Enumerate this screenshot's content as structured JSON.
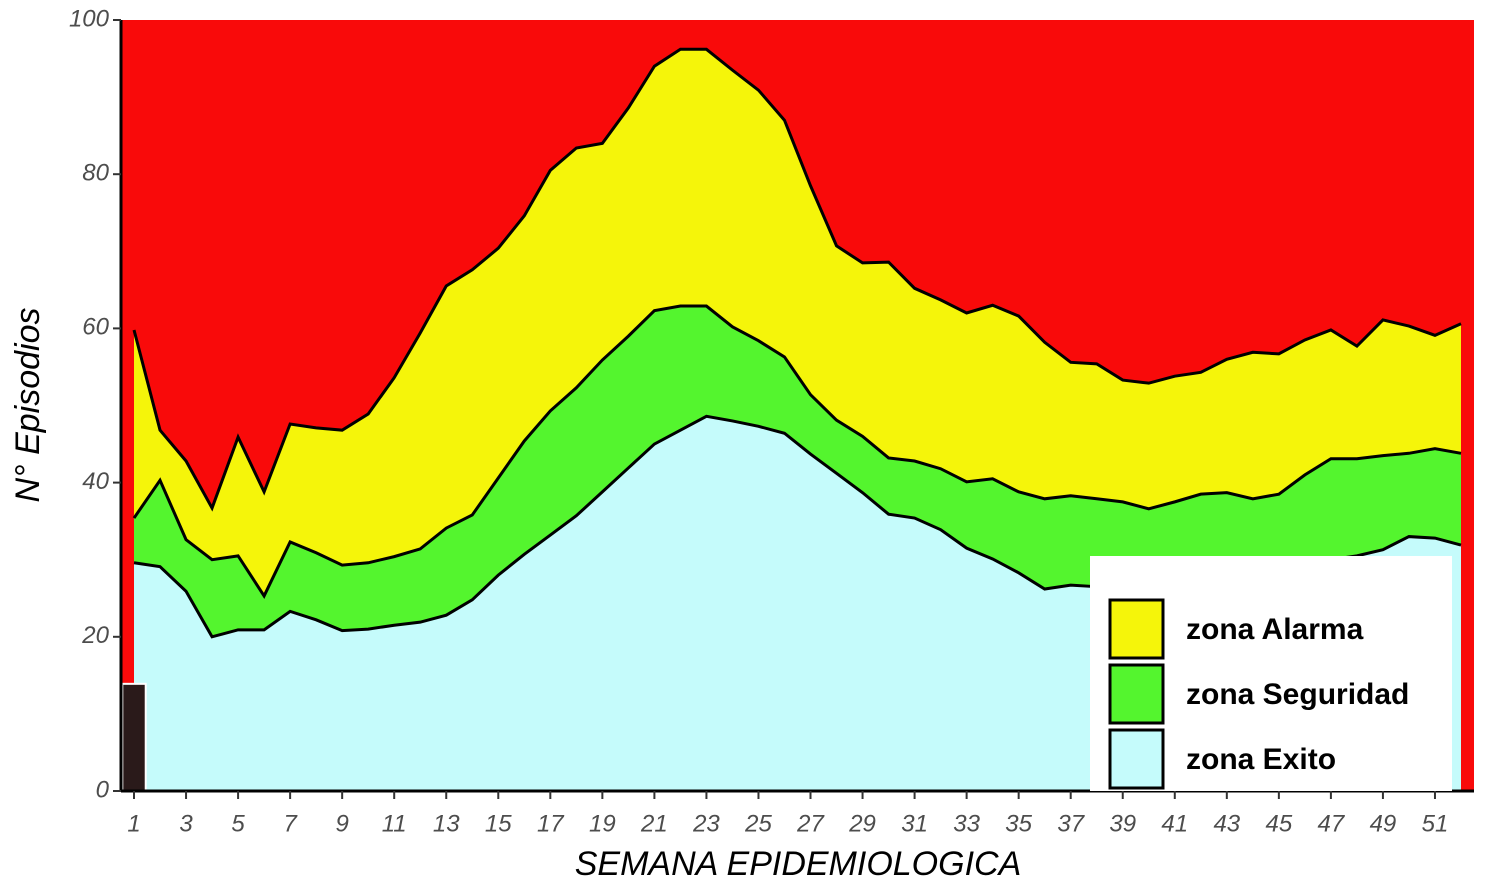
{
  "chart_data": {
    "type": "area",
    "x_label": "SEMANA EPIDEMIOLOGICA",
    "y_label": "N° Episodios",
    "background_color": "#f90a0a",
    "x": [
      1,
      2,
      3,
      4,
      5,
      6,
      7,
      8,
      9,
      10,
      11,
      12,
      13,
      14,
      15,
      16,
      17,
      18,
      19,
      20,
      21,
      22,
      23,
      24,
      25,
      26,
      27,
      28,
      29,
      30,
      31,
      32,
      33,
      34,
      35,
      36,
      37,
      38,
      39,
      40,
      41,
      42,
      43,
      44,
      45,
      46,
      47,
      48,
      49,
      50,
      51,
      52
    ],
    "xlim": [
      0.5,
      52.5
    ],
    "xticks": [
      1,
      3,
      5,
      7,
      9,
      11,
      13,
      15,
      17,
      19,
      21,
      23,
      25,
      27,
      29,
      31,
      33,
      35,
      37,
      39,
      41,
      43,
      45,
      47,
      49,
      51
    ],
    "ylim": [
      0,
      100
    ],
    "yticks": [
      0,
      20,
      40,
      60,
      80,
      100
    ],
    "legend_position": "bottom-right",
    "series": [
      {
        "name": "zona Alarma",
        "type": "area",
        "color": "#f5f50a",
        "values": [
          59.8,
          46.8,
          42.8,
          36.7,
          45.9,
          38.8,
          47.6,
          47.1,
          46.8,
          48.9,
          53.6,
          59.4,
          65.5,
          67.6,
          70.4,
          74.6,
          80.5,
          83.4,
          84,
          88.6,
          94,
          96.2,
          96.2,
          93.5,
          90.9,
          87,
          78.5,
          70.7,
          68.5,
          68.6,
          65.2,
          63.7,
          62,
          63,
          61.6,
          58.2,
          55.6,
          55.4,
          53.3,
          52.9,
          53.8,
          54.3,
          56,
          56.9,
          56.7,
          58.5,
          59.8,
          57.7,
          61.1,
          60.3,
          59.1,
          60.6
        ]
      },
      {
        "name": "zona Seguridad",
        "type": "area",
        "color": "#54f52e",
        "values": [
          35.4,
          40.3,
          32.6,
          30,
          30.5,
          25.3,
          32.3,
          30.9,
          29.3,
          29.6,
          30.4,
          31.4,
          34.1,
          35.8,
          40.6,
          45.4,
          49.3,
          52.3,
          55.9,
          59,
          62.3,
          62.9,
          62.9,
          60.2,
          58.4,
          56.3,
          51.4,
          48.1,
          46,
          43.2,
          42.8,
          41.8,
          40.1,
          40.5,
          38.8,
          37.9,
          38.3,
          37.9,
          37.5,
          36.6,
          37.5,
          38.5,
          38.7,
          37.9,
          38.5,
          41,
          43.1,
          43.1,
          43.5,
          43.8,
          44.4,
          43.8
        ]
      },
      {
        "name": "zona Exito",
        "type": "area",
        "color": "#c5fbfb",
        "values": [
          29.6,
          29.1,
          25.9,
          20,
          20.9,
          20.9,
          23.3,
          22.2,
          20.8,
          21,
          21.5,
          21.9,
          22.8,
          24.8,
          28,
          30.7,
          33.2,
          35.7,
          38.8,
          41.9,
          45,
          46.8,
          48.6,
          48,
          47.3,
          46.4,
          43.7,
          41.2,
          38.7,
          35.9,
          35.4,
          33.9,
          31.5,
          30.1,
          28.3,
          26.2,
          26.7,
          26.5,
          26.5,
          27,
          27.5,
          28,
          28.5,
          29,
          29,
          29.5,
          30,
          30.5,
          31.3,
          33,
          32.8,
          31.9
        ]
      },
      {
        "type": "bar",
        "color": "#2a1a1a",
        "values": [
          13.9,
          null,
          null,
          null,
          null,
          null,
          null,
          null,
          null,
          null,
          null,
          null,
          null,
          null,
          null,
          null,
          null,
          null,
          null,
          null,
          null,
          null,
          null,
          null,
          null,
          null,
          null,
          null,
          null,
          null,
          null,
          null,
          null,
          null,
          null,
          null,
          null,
          null,
          null,
          null,
          null,
          null,
          null,
          null,
          null,
          null,
          null,
          null,
          null,
          null,
          null,
          null
        ]
      }
    ]
  }
}
